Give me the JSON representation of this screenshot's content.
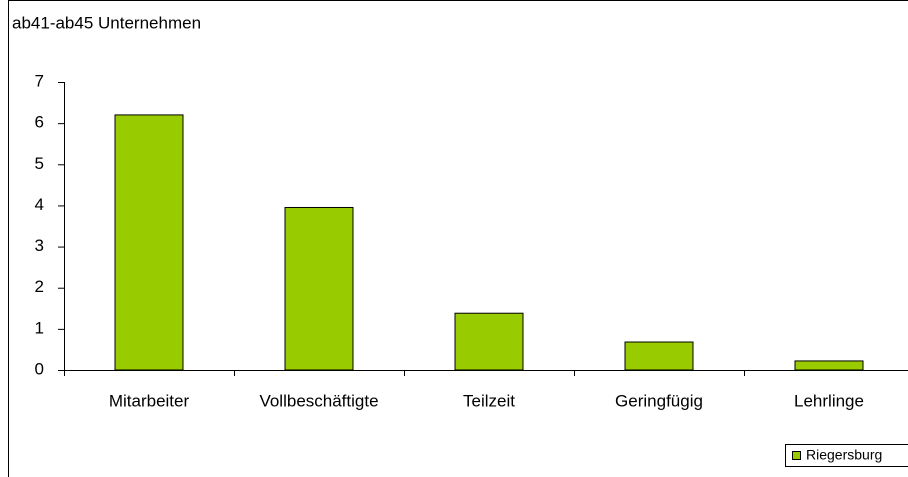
{
  "chart_data": {
    "type": "bar",
    "title": "ab41-ab45 Unternehmen",
    "categories": [
      "Mitarbeiter",
      "Vollbeschäftigte",
      "Teilzeit",
      "Geringfügig",
      "Lehrlinge"
    ],
    "series": [
      {
        "name": "Riegersburg",
        "color": "#99cc00",
        "values": [
          6.2,
          3.95,
          1.38,
          0.68,
          0.22
        ]
      }
    ],
    "ylim": [
      0,
      7
    ],
    "yticks": [
      0,
      1,
      2,
      3,
      4,
      5,
      6,
      7
    ],
    "grid": false,
    "legend": "bottom-right"
  }
}
